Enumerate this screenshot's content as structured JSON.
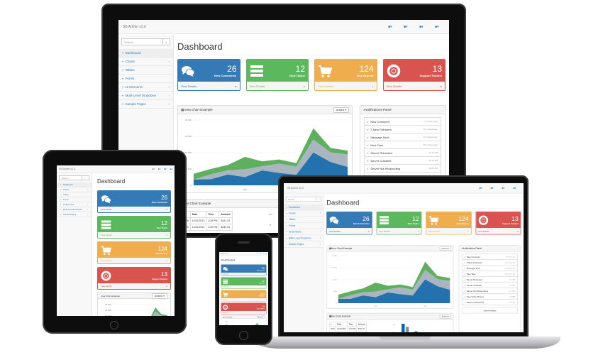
{
  "brand": "SB Admin v2.0",
  "navbar_icons": [
    "envelope-icon",
    "tasks-icon",
    "bell-icon",
    "user-icon"
  ],
  "search": {
    "placeholder": "Search..."
  },
  "sidebar": {
    "items": [
      {
        "label": "Dashboard",
        "icon": "dashboard-icon",
        "active": true,
        "arrow": false
      },
      {
        "label": "Charts",
        "icon": "bar-chart-icon",
        "arrow": true
      },
      {
        "label": "Tables",
        "icon": "table-icon",
        "arrow": false
      },
      {
        "label": "Forms",
        "icon": "edit-icon",
        "arrow": false
      },
      {
        "label": "UI Elements",
        "icon": "wrench-icon",
        "arrow": true
      },
      {
        "label": "Multi-Level Dropdown",
        "icon": "sitemap-icon",
        "arrow": true
      },
      {
        "label": "Sample Pages",
        "icon": "files-icon",
        "arrow": true
      }
    ]
  },
  "page_title": "Dashboard",
  "cards": [
    {
      "value": "26",
      "label": "New Comments!",
      "footer": "View Details",
      "icon": "comments-icon",
      "color": "#337ab7"
    },
    {
      "value": "12",
      "label": "New Tasks!",
      "footer": "View Details",
      "icon": "tasks-icon",
      "color": "#5cb85c"
    },
    {
      "value": "124",
      "label": "New Orders!",
      "footer": "View Details",
      "icon": "shopping-cart-icon",
      "color": "#f0ad4e"
    },
    {
      "value": "13",
      "label": "Support Tickets!",
      "footer": "View Details",
      "icon": "support-icon",
      "color": "#d9534f"
    }
  ],
  "area_chart": {
    "title": "Area Chart Example",
    "actions_label": "Actions ▾",
    "y_ticks": [
      "30,000",
      "22,500",
      "15,000",
      "7,500",
      "0"
    ],
    "x_ticks": [
      "2011",
      "2012"
    ],
    "ylim": [
      0,
      30000
    ],
    "series": [
      {
        "values": [
          2666,
          2778,
          4912,
          3767,
          6810,
          5670,
          4820,
          15073,
          10687,
          8432
        ],
        "color": "#0b62a4"
      },
      {
        "values": [
          0,
          2294,
          1969,
          3597,
          1914,
          4293,
          3795,
          5967,
          4460,
          5713
        ],
        "color": "#a0adb8"
      },
      {
        "values": [
          2647,
          2441,
          2501,
          5689,
          2293,
          1881,
          1588,
          5175,
          2028,
          1791
        ],
        "color": "#4da74d"
      }
    ]
  },
  "notifications": {
    "title": "Notifications Panel",
    "view_all": "View All Alerts",
    "items": [
      {
        "text": "New Comment",
        "time": "4 minutes ago",
        "icon": "comment-icon"
      },
      {
        "text": "3 New Followers",
        "time": "12 minutes ago",
        "icon": "twitter-icon"
      },
      {
        "text": "Message Sent",
        "time": "27 minutes ago",
        "icon": "envelope-icon"
      },
      {
        "text": "New Task",
        "time": "43 minutes ago",
        "icon": "tasks-icon"
      },
      {
        "text": "Server Rebooted",
        "time": "11:32 AM",
        "icon": "upload-icon"
      },
      {
        "text": "Server Crashed!",
        "time": "11:13 AM",
        "icon": "bolt-icon"
      },
      {
        "text": "Server Not Responding",
        "time": "10:57 AM",
        "icon": "warning-icon"
      },
      {
        "text": "New Order Placed",
        "time": "9:49 AM",
        "icon": "cart-icon"
      },
      {
        "text": "Payment Received",
        "time": "Yesterday",
        "icon": "money-icon"
      }
    ]
  },
  "bar_chart": {
    "title": "Bar Chart Example",
    "columns": [
      "#",
      "Date",
      "Time",
      "Amount"
    ],
    "rows": [
      [
        "3326",
        "10/21/2013",
        "3:29 PM",
        "$321.33"
      ],
      [
        "3325",
        "10/21/2013",
        "3:20 PM",
        "$234.34"
      ]
    ],
    "y_ticks": [
      "100",
      "75"
    ],
    "bars": [
      [
        100,
        90
      ],
      [
        75,
        65
      ]
    ],
    "colors": [
      "#0b62a4",
      "#7a92a3"
    ]
  }
}
